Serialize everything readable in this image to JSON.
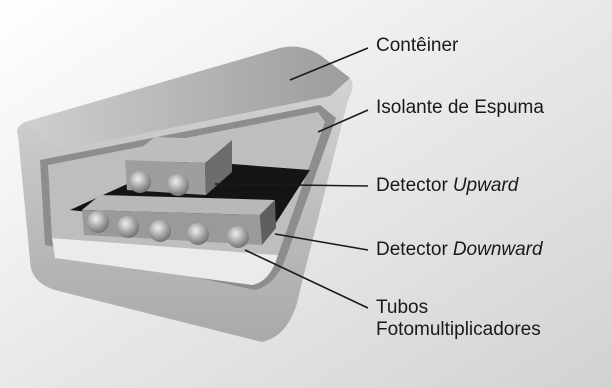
{
  "labels": [
    {
      "parts": [
        "Contêiner"
      ]
    },
    {
      "parts": [
        "Isolante de Espuma"
      ]
    },
    {
      "parts": [
        "Detector",
        "Upward"
      ]
    },
    {
      "parts": [
        "Detector",
        "Downward"
      ]
    },
    {
      "lines": [
        "Tubos",
        "Fotomultiplicadores"
      ]
    }
  ]
}
